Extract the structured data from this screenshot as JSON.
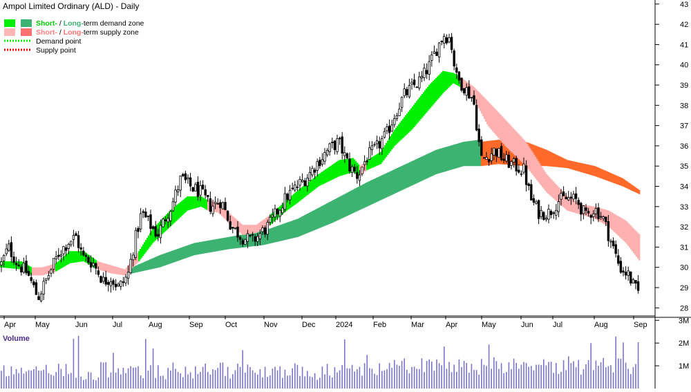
{
  "chart_data": {
    "type": "candlestick",
    "title": "Ampol Limited Ordinary (ALD) - Daily",
    "legend": {
      "placement": "top-left",
      "items": [
        {
          "kind": "demand-zone",
          "prefix": "Short-",
          "sep": " / ",
          "label": "Long-",
          "suffix": "term demand zone",
          "colors": [
            "#00ee00",
            "#3cb371"
          ],
          "label_color": "#00cc00"
        },
        {
          "kind": "supply-zone",
          "prefix": "Short-",
          "sep": " / ",
          "label": "Long-",
          "suffix": "term supply zone",
          "colors": [
            "#ffb6b6",
            "#ff7070"
          ],
          "label_color": "#ff8080"
        },
        {
          "kind": "demand-point",
          "suffix": "Demand point",
          "colors": [
            "#00ee00"
          ]
        },
        {
          "kind": "supply-point",
          "suffix": "Supply point",
          "colors": [
            "#ee0000"
          ]
        }
      ]
    },
    "price_axis": {
      "ticks": [
        28,
        29,
        30,
        31,
        32,
        33,
        34,
        35,
        36,
        37,
        38,
        39,
        40,
        41,
        42,
        43
      ],
      "ylim": [
        27.6,
        43.2
      ]
    },
    "x_labels": [
      "Apr",
      "May",
      "Jun",
      "Jul",
      "Aug",
      "Sep",
      "Oct",
      "Nov",
      "Dec",
      "2024",
      "Feb",
      "Mar",
      "Apr",
      "May",
      "Jun",
      "Jul",
      "Aug",
      "Sep"
    ],
    "close_path": [
      [
        0,
        30.0
      ],
      [
        12,
        31.0
      ],
      [
        25,
        30.2
      ],
      [
        40,
        29.7
      ],
      [
        55,
        28.5
      ],
      [
        70,
        29.6
      ],
      [
        85,
        30.7
      ],
      [
        100,
        31.3
      ],
      [
        110,
        31.5
      ],
      [
        120,
        30.5
      ],
      [
        135,
        30.2
      ],
      [
        150,
        29.3
      ],
      [
        160,
        29.5
      ],
      [
        172,
        29.0
      ],
      [
        185,
        29.6
      ],
      [
        195,
        31.3
      ],
      [
        205,
        32.7
      ],
      [
        215,
        32.2
      ],
      [
        228,
        31.6
      ],
      [
        240,
        32.5
      ],
      [
        250,
        33.2
      ],
      [
        262,
        34.4
      ],
      [
        275,
        34.0
      ],
      [
        290,
        33.7
      ],
      [
        305,
        33.0
      ],
      [
        320,
        33.3
      ],
      [
        335,
        32.0
      ],
      [
        350,
        31.5
      ],
      [
        365,
        31.3
      ],
      [
        375,
        31.6
      ],
      [
        390,
        32.1
      ],
      [
        402,
        32.8
      ],
      [
        415,
        33.5
      ],
      [
        430,
        34.0
      ],
      [
        445,
        34.5
      ],
      [
        460,
        35.2
      ],
      [
        475,
        35.8
      ],
      [
        490,
        36.2
      ],
      [
        505,
        35.0
      ],
      [
        518,
        34.5
      ],
      [
        530,
        35.4
      ],
      [
        545,
        35.9
      ],
      [
        560,
        36.6
      ],
      [
        572,
        37.6
      ],
      [
        585,
        38.5
      ],
      [
        597,
        38.9
      ],
      [
        610,
        39.3
      ],
      [
        622,
        40.0
      ],
      [
        632,
        40.8
      ],
      [
        642,
        41.5
      ],
      [
        652,
        41.3
      ],
      [
        660,
        39.4
      ],
      [
        672,
        38.9
      ],
      [
        685,
        38.3
      ],
      [
        693,
        36.2
      ],
      [
        697,
        35.3
      ],
      [
        706,
        35.5
      ],
      [
        716,
        35.8
      ],
      [
        730,
        35.3
      ],
      [
        745,
        35.0
      ],
      [
        758,
        34.8
      ],
      [
        768,
        33.4
      ],
      [
        780,
        32.7
      ],
      [
        795,
        32.7
      ],
      [
        808,
        33.3
      ],
      [
        822,
        33.4
      ],
      [
        835,
        33.3
      ],
      [
        848,
        32.5
      ],
      [
        860,
        32.9
      ],
      [
        872,
        32.5
      ],
      [
        885,
        31.2
      ],
      [
        897,
        30.0
      ],
      [
        910,
        29.6
      ],
      [
        918,
        29.0
      ],
      [
        925,
        28.7
      ]
    ],
    "short_zone": [
      [
        0,
        30.0,
        30.3,
        "d"
      ],
      [
        30,
        29.9,
        30.3,
        "d"
      ],
      [
        45,
        29.6,
        30.0,
        "s"
      ],
      [
        60,
        29.6,
        30.0,
        "s"
      ],
      [
        80,
        29.8,
        30.2,
        "d"
      ],
      [
        100,
        30.2,
        30.8,
        "d"
      ],
      [
        120,
        30.3,
        30.8,
        "d"
      ],
      [
        140,
        29.9,
        30.3,
        "s"
      ],
      [
        160,
        29.7,
        30.1,
        "s"
      ],
      [
        180,
        29.6,
        29.9,
        "s"
      ],
      [
        200,
        30.3,
        30.8,
        "d"
      ],
      [
        220,
        31.2,
        31.9,
        "d"
      ],
      [
        245,
        32.0,
        32.8,
        "d"
      ],
      [
        270,
        32.8,
        33.5,
        "d"
      ],
      [
        290,
        33.0,
        33.5,
        "d"
      ],
      [
        300,
        32.8,
        33.3,
        "s"
      ],
      [
        315,
        32.7,
        33.2,
        "s"
      ],
      [
        330,
        32.2,
        32.7,
        "s"
      ],
      [
        350,
        31.6,
        32.1,
        "s"
      ],
      [
        370,
        31.7,
        32.1,
        "s"
      ],
      [
        390,
        32.1,
        32.6,
        "d"
      ],
      [
        410,
        32.7,
        33.2,
        "d"
      ],
      [
        430,
        33.2,
        33.8,
        "d"
      ],
      [
        460,
        34.0,
        34.6,
        "d"
      ],
      [
        490,
        34.5,
        35.3,
        "d"
      ],
      [
        510,
        34.7,
        35.4,
        "d"
      ],
      [
        520,
        34.5,
        35.0,
        "s"
      ],
      [
        530,
        34.8,
        35.3,
        "d"
      ],
      [
        550,
        35.1,
        35.7,
        "d"
      ],
      [
        570,
        36.0,
        36.8,
        "d"
      ],
      [
        595,
        36.8,
        37.9,
        "d"
      ],
      [
        620,
        37.8,
        39.0,
        "d"
      ],
      [
        640,
        38.6,
        39.7,
        "d"
      ],
      [
        655,
        39.1,
        39.6,
        "d"
      ],
      [
        665,
        38.9,
        39.4,
        "s"
      ],
      [
        685,
        38.3,
        38.9,
        "s"
      ],
      [
        705,
        37.0,
        38.2,
        "s"
      ],
      [
        730,
        36.0,
        37.3,
        "s"
      ],
      [
        760,
        35.0,
        36.2,
        "s"
      ],
      [
        790,
        33.7,
        34.6,
        "s"
      ],
      [
        820,
        32.8,
        33.5,
        "s"
      ],
      [
        840,
        32.6,
        33.1,
        "s"
      ],
      [
        860,
        32.4,
        33.0,
        "s"
      ],
      [
        880,
        32.0,
        32.8,
        "s"
      ],
      [
        905,
        31.2,
        32.3,
        "s"
      ],
      [
        925,
        30.3,
        31.6,
        "s"
      ]
    ],
    "long_zone": [
      [
        190,
        29.7,
        30.0,
        "d"
      ],
      [
        230,
        30.0,
        30.6,
        "d"
      ],
      [
        280,
        30.6,
        31.2,
        "d"
      ],
      [
        330,
        30.9,
        31.5,
        "d"
      ],
      [
        380,
        31.1,
        31.8,
        "d"
      ],
      [
        430,
        31.5,
        32.4,
        "d"
      ],
      [
        480,
        32.2,
        33.3,
        "d"
      ],
      [
        530,
        33.0,
        34.2,
        "d"
      ],
      [
        580,
        33.8,
        35.0,
        "d"
      ],
      [
        630,
        34.6,
        35.8,
        "d"
      ],
      [
        670,
        35.0,
        36.2,
        "d"
      ],
      [
        693,
        35.0,
        36.3,
        "d"
      ],
      [
        695,
        35.0,
        36.2,
        "s"
      ],
      [
        720,
        35.1,
        36.3,
        "s"
      ],
      [
        760,
        35.0,
        36.2,
        "s"
      ],
      [
        790,
        35.0,
        35.8,
        "s"
      ],
      [
        820,
        34.9,
        35.3,
        "s"
      ],
      [
        860,
        34.5,
        35.0,
        "s"
      ],
      [
        900,
        34.0,
        34.4,
        "s"
      ],
      [
        925,
        33.6,
        33.8,
        "s"
      ]
    ],
    "volume": {
      "label": "Volume",
      "ticks": [
        "3M",
        "2M",
        "1M"
      ],
      "ylim": [
        0,
        3.1
      ]
    }
  }
}
